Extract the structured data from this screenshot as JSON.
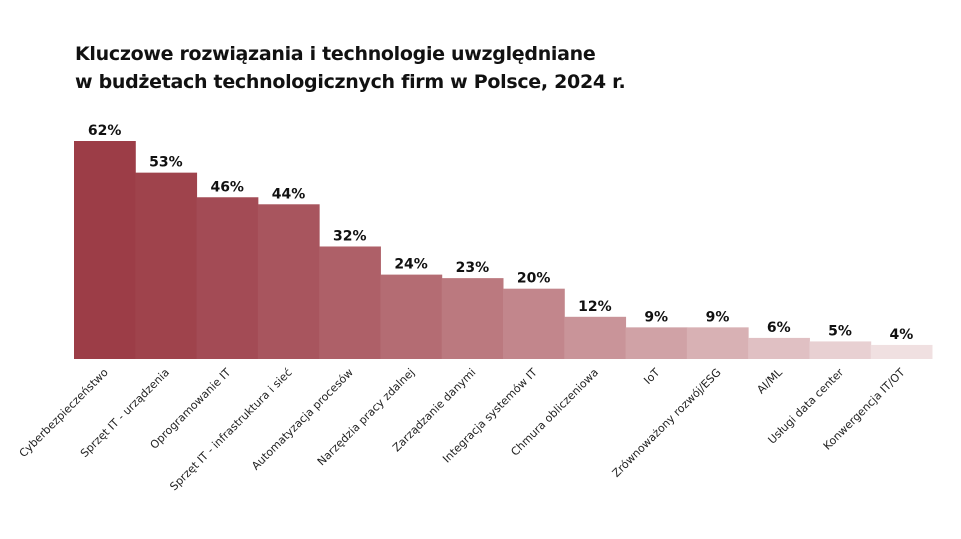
{
  "chart_data": {
    "type": "bar",
    "title_lines": [
      "Kluczowe rozwiązania i technologie uwzględniane",
      "w budżetach technologicznych firm w Polsce, 2024 r."
    ],
    "categories": [
      "Cyberbezpieczeństwo",
      "Sprzęt IT - urządzenia",
      "Oprogramowanie IT",
      "Sprzęt IT - infrastruktura i sieć",
      "Automatyzacja procesów",
      "Narzędzia pracy zdalnej",
      "Zarządzanie danymi",
      "Integracja systemów IT",
      "Chmura obliczeniowa",
      "IoT",
      "Zrównoważony rozwój/ESG",
      "AI/ML",
      "Usługi data center",
      "Konwergencja IT/OT"
    ],
    "values": [
      62,
      53,
      46,
      44,
      32,
      24,
      23,
      20,
      12,
      9,
      9,
      6,
      5,
      4
    ],
    "value_labels": [
      "62%",
      "53%",
      "46%",
      "44%",
      "32%",
      "24%",
      "23%",
      "20%",
      "12%",
      "9%",
      "9%",
      "6%",
      "5%",
      "4%"
    ],
    "unit": "%",
    "ylim": [
      0,
      62
    ],
    "grid": false,
    "colors": {
      "start": "#9c3d47",
      "end": "#f0e0e1"
    }
  }
}
